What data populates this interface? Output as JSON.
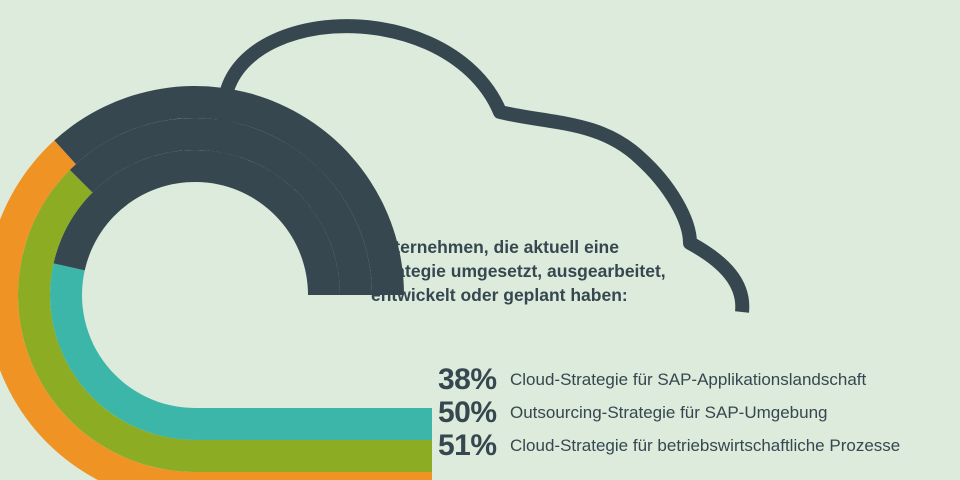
{
  "intro_lines": [
    "Unternehmen, die aktuell eine",
    "Strategie umgesetzt, ausgearbeitet,",
    "entwickelt oder geplant haben:"
  ],
  "colors": {
    "background": "#dcebdc",
    "cloud_outline": "#36474f",
    "teal": "#3cb6a8",
    "green": "#8cac24",
    "orange": "#ef9424",
    "remainder": "#36474f"
  },
  "chart_data": {
    "type": "bar",
    "categories": [
      "Cloud-Strategie für SAP-Applikationslandschaft",
      "Outsourcing-Strategie für SAP-Umgebung",
      "Cloud-Strategie für betriebswirtschaftliche Prozesse"
    ],
    "values": [
      38,
      50,
      51
    ],
    "value_labels": [
      "38%",
      "50%",
      "51%"
    ],
    "unit": "%",
    "ylim": [
      0,
      100
    ],
    "bar_colors": [
      "#3cb6a8",
      "#8cac24",
      "#ef9424"
    ],
    "remainder_color": "#36474f",
    "style": "radial arcs within a cloud outline"
  }
}
